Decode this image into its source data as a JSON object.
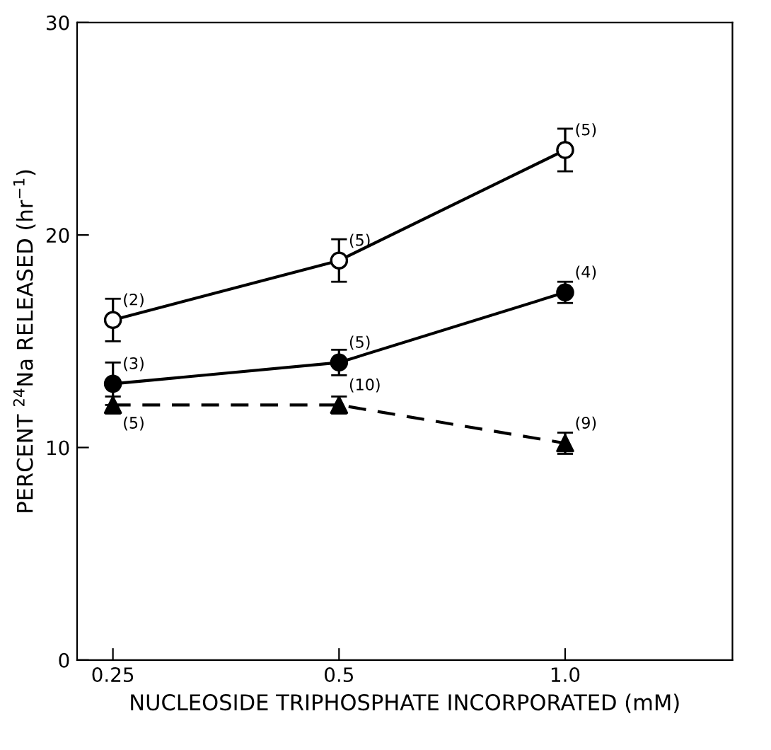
{
  "chart_data": {
    "type": "line",
    "xlabel": "NUCLEOSIDE TRIPHOSPHATE INCORPORATED (mM)",
    "ylabel": "PERCENT $^{24}$Na RELEASED (hr$^{−1}$)",
    "x": [
      0.25,
      0.5,
      1.0
    ],
    "log": "x",
    "xlim": [
      0.224,
      1.67
    ],
    "xticks": [
      0.25,
      0.5,
      {
        "value": 1.0,
        "label": "1.0"
      }
    ],
    "ylim": [
      0,
      30
    ],
    "yticks": [
      0,
      10,
      20,
      30
    ],
    "grid": false,
    "legend": false,
    "series": [
      {
        "color": "#000000",
        "marker": "circle",
        "colors": [
          "#ffffff",
          "#ffffff",
          "#ffffff"
        ],
        "line_style": "solid",
        "values": [
          16,
          18.8,
          24
        ],
        "errors": [
          1,
          1,
          1
        ]
      },
      {
        "color": "#000000",
        "marker": "circle",
        "line_style": "solid",
        "values": [
          13,
          14,
          17.3
        ],
        "errors": [
          1,
          0.6,
          0.5
        ]
      },
      {
        "color": "#000000",
        "marker": "triangle",
        "line_style": "dashed",
        "values": [
          12,
          12,
          10.2
        ],
        "errors": [
          0.4,
          0.4,
          0.5
        ]
      }
    ],
    "annotations": [
      {
        "text": "(2)",
        "x": 0.25,
        "y": 16
      },
      {
        "text": "(3)",
        "x": 0.25,
        "y": 13
      },
      {
        "text": "(5)",
        "x": 0.25,
        "y": 12
      },
      {
        "text": "(5)",
        "x": 0.5,
        "y": 18.8
      },
      {
        "text": "(5)",
        "x": 0.5,
        "y": 14
      },
      {
        "text": "(10)",
        "x": 0.5,
        "y": 12
      },
      {
        "text": "(5)",
        "x": 1.0,
        "y": 24
      },
      {
        "text": "(4)",
        "x": 1.0,
        "y": 17.3
      },
      {
        "text": "(9)",
        "x": 1.0,
        "y": 10.2
      }
    ]
  }
}
